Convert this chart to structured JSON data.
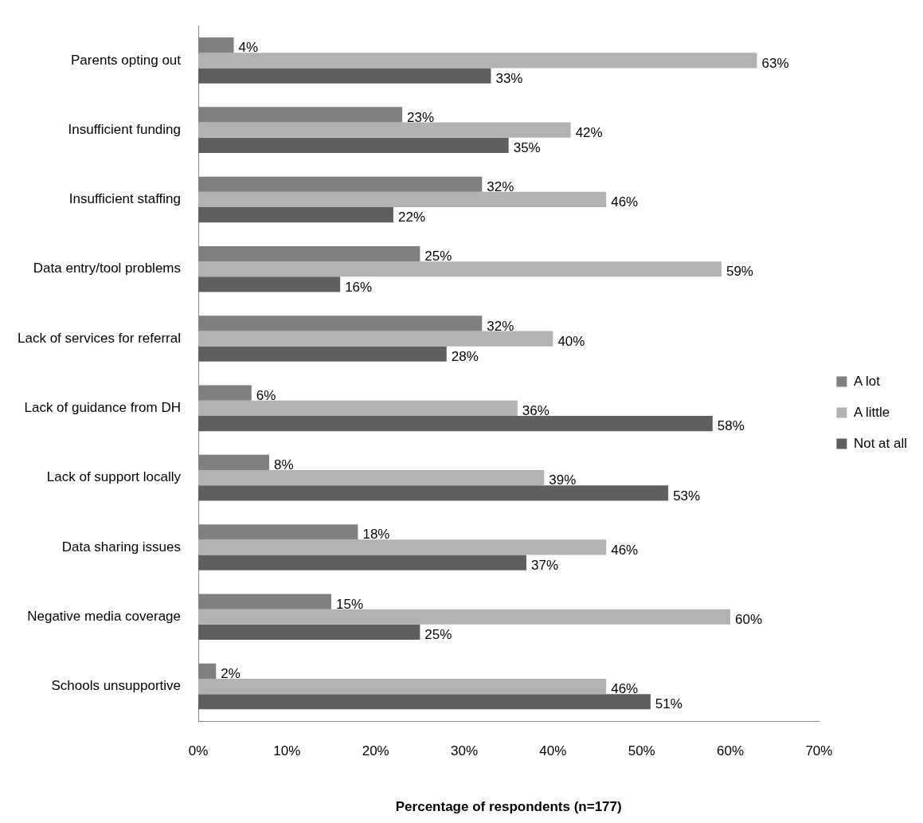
{
  "chart_data": {
    "type": "bar",
    "orientation": "horizontal",
    "xlabel": "Percentage of respondents (n=177)",
    "categories": [
      "Parents opting out",
      "Insufficient funding",
      "Insufficient staffing",
      "Data entry/tool problems",
      "Lack of services for referral",
      "Lack of guidance from DH",
      "Lack of support locally",
      "Data sharing issues",
      "Negative media coverage",
      "Schools unsupportive"
    ],
    "series": [
      {
        "name": "A lot",
        "color": "#808080",
        "values": [
          4,
          23,
          32,
          25,
          32,
          6,
          8,
          18,
          15,
          2
        ],
        "value_labels": [
          "4%",
          "23%",
          "32%",
          "25%",
          "32%",
          "6%",
          "8%",
          "18%",
          "15%",
          "2%"
        ]
      },
      {
        "name": "A little",
        "color": "#b2b2b2",
        "values": [
          63,
          42,
          46,
          59,
          40,
          36,
          39,
          46,
          60,
          46
        ],
        "value_labels": [
          "63%",
          "42%",
          "46%",
          "59%",
          "40%",
          "36%",
          "39%",
          "46%",
          "60%",
          "46%"
        ]
      },
      {
        "name": "Not at all",
        "color": "#5f5f5f",
        "values": [
          33,
          35,
          22,
          16,
          28,
          58,
          53,
          37,
          25,
          51
        ],
        "value_labels": [
          "33%",
          "35%",
          "22%",
          "16%",
          "28%",
          "58%",
          "53%",
          "37%",
          "25%",
          "51%"
        ]
      }
    ],
    "xlim": [
      0,
      70
    ],
    "xticks": [
      {
        "value": 0,
        "label": "0%"
      },
      {
        "value": 10,
        "label": "10%"
      },
      {
        "value": 20,
        "label": "20%"
      },
      {
        "value": 30,
        "label": "30%"
      },
      {
        "value": 40,
        "label": "40%"
      },
      {
        "value": 50,
        "label": "50%"
      },
      {
        "value": 60,
        "label": "60%"
      },
      {
        "value": 70,
        "label": "70%"
      }
    ],
    "grid": false,
    "legend": "right"
  }
}
